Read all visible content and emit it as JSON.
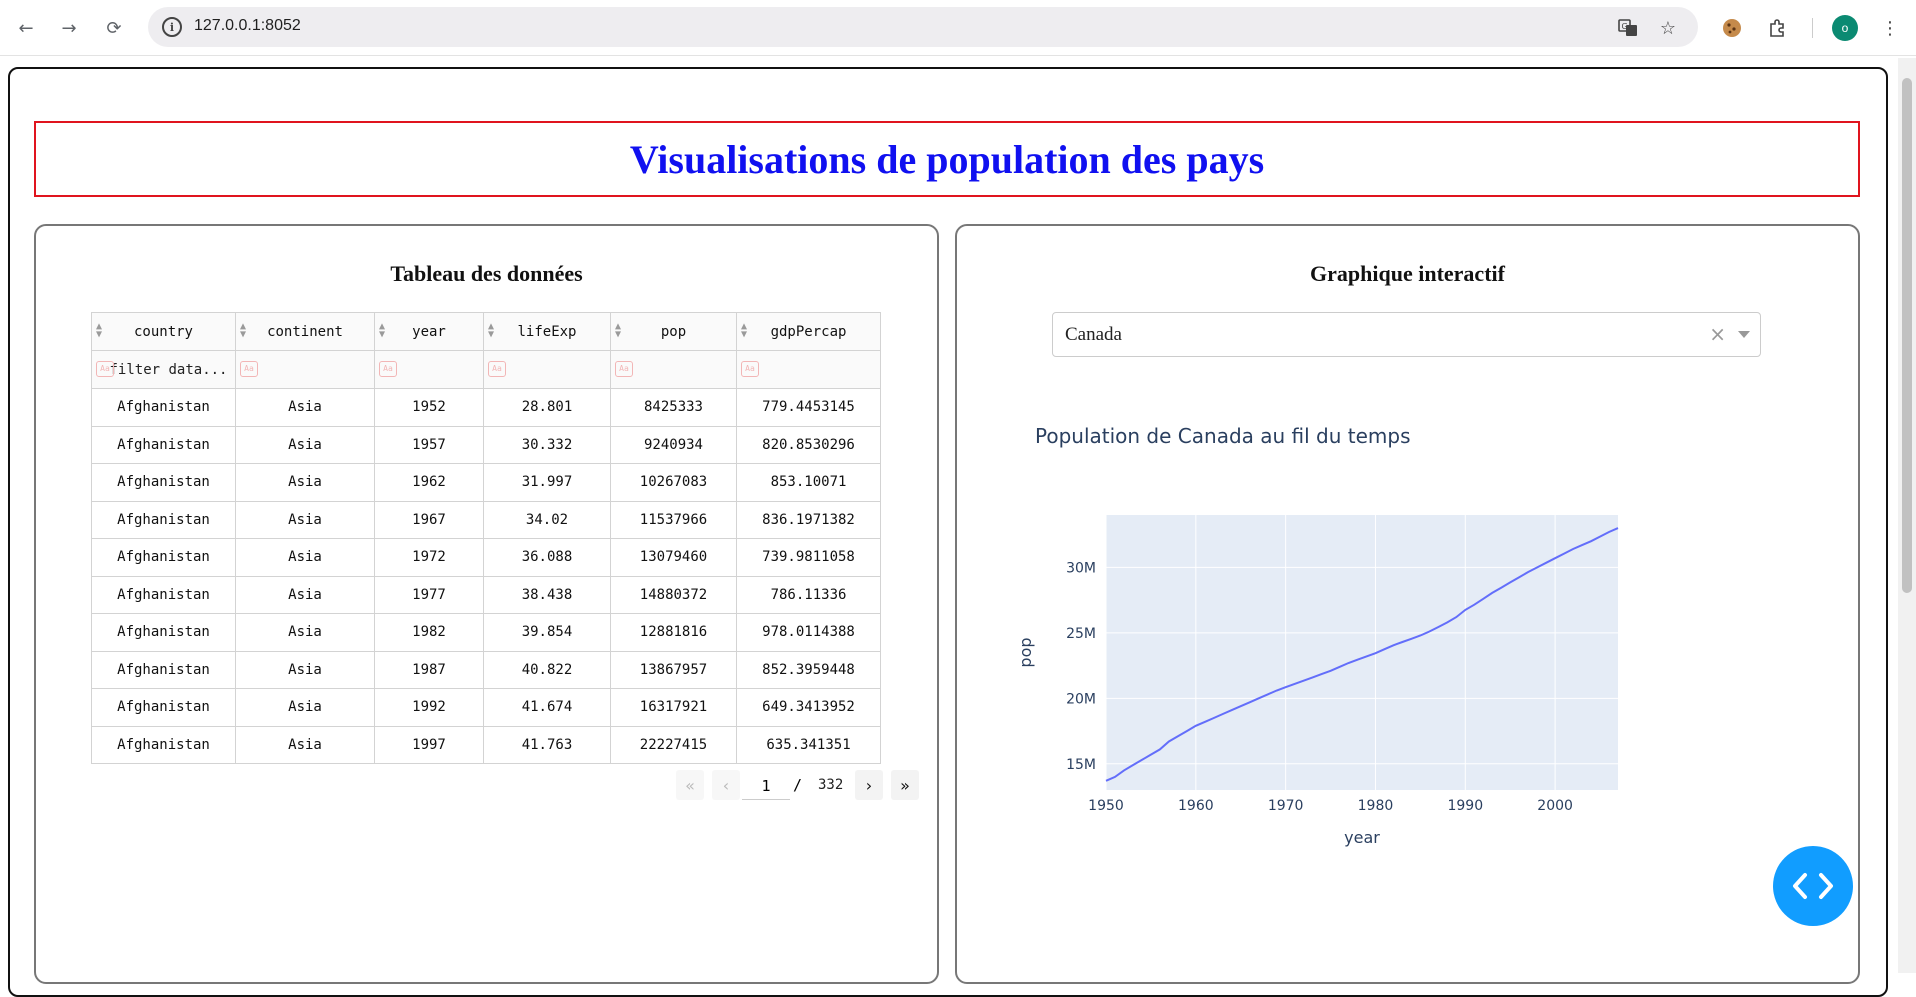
{
  "browser": {
    "url": "127.0.0.1:8052",
    "avatar_letter": "o"
  },
  "page": {
    "title": "Visualisations de population des pays",
    "left_panel_title": "Tableau des données",
    "right_panel_title": "Graphique interactif"
  },
  "table": {
    "columns": [
      "country",
      "continent",
      "year",
      "lifeExp",
      "pop",
      "gdpPercap"
    ],
    "filter_placeholder": "filter data...",
    "rows": [
      [
        "Afghanistan",
        "Asia",
        "1952",
        "28.801",
        "8425333",
        "779.4453145"
      ],
      [
        "Afghanistan",
        "Asia",
        "1957",
        "30.332",
        "9240934",
        "820.8530296"
      ],
      [
        "Afghanistan",
        "Asia",
        "1962",
        "31.997",
        "10267083",
        "853.10071"
      ],
      [
        "Afghanistan",
        "Asia",
        "1967",
        "34.02",
        "11537966",
        "836.1971382"
      ],
      [
        "Afghanistan",
        "Asia",
        "1972",
        "36.088",
        "13079460",
        "739.9811058"
      ],
      [
        "Afghanistan",
        "Asia",
        "1977",
        "38.438",
        "14880372",
        "786.11336"
      ],
      [
        "Afghanistan",
        "Asia",
        "1982",
        "39.854",
        "12881816",
        "978.0114388"
      ],
      [
        "Afghanistan",
        "Asia",
        "1987",
        "40.822",
        "13867957",
        "852.3959448"
      ],
      [
        "Afghanistan",
        "Asia",
        "1992",
        "41.674",
        "16317921",
        "649.3413952"
      ],
      [
        "Afghanistan",
        "Asia",
        "1997",
        "41.763",
        "22227415",
        "635.341351"
      ]
    ],
    "pagination": {
      "current_page": "1",
      "separator": "/",
      "total_pages": "332"
    }
  },
  "dropdown": {
    "selected": "Canada",
    "clear_symbol": "×"
  },
  "chart_data": {
    "type": "line",
    "title": "Population de Canada au fil du temps",
    "xlabel": "year",
    "ylabel": "pop",
    "xlim": [
      1950,
      2007
    ],
    "ylim": [
      13000000,
      34000000
    ],
    "x_ticks": [
      "1950",
      "1960",
      "1970",
      "1980",
      "1990",
      "2000"
    ],
    "y_ticks": [
      "15M",
      "20M",
      "25M",
      "30M"
    ],
    "grid": true,
    "series": [
      {
        "color": "#636efa",
        "x": [
          1950,
          1951,
          1952,
          1953,
          1954,
          1955,
          1956,
          1957,
          1958,
          1959,
          1960,
          1961,
          1962,
          1963,
          1964,
          1965,
          1966,
          1967,
          1968,
          1969,
          1970,
          1971,
          1972,
          1973,
          1974,
          1975,
          1976,
          1977,
          1978,
          1979,
          1980,
          1981,
          1982,
          1983,
          1984,
          1985,
          1986,
          1987,
          1988,
          1989,
          1990,
          1991,
          1992,
          1993,
          1994,
          1995,
          1996,
          1997,
          1998,
          1999,
          2000,
          2001,
          2002,
          2003,
          2004,
          2005,
          2006,
          2007
        ],
        "y": [
          13700000,
          14000000,
          14500000,
          14900000,
          15300000,
          15700000,
          16100000,
          16700000,
          17100000,
          17500000,
          17900000,
          18200000,
          18500000,
          18800000,
          19100000,
          19400000,
          19700000,
          20000000,
          20300000,
          20600000,
          20850000,
          21100000,
          21350000,
          21600000,
          21850000,
          22100000,
          22400000,
          22700000,
          22950000,
          23200000,
          23450000,
          23750000,
          24050000,
          24300000,
          24550000,
          24800000,
          25100000,
          25450000,
          25800000,
          26200000,
          26750000,
          27150000,
          27600000,
          28050000,
          28450000,
          28850000,
          29250000,
          29650000,
          30000000,
          30350000,
          30700000,
          31050000,
          31400000,
          31700000,
          32000000,
          32350000,
          32700000,
          33000000
        ]
      }
    ]
  }
}
